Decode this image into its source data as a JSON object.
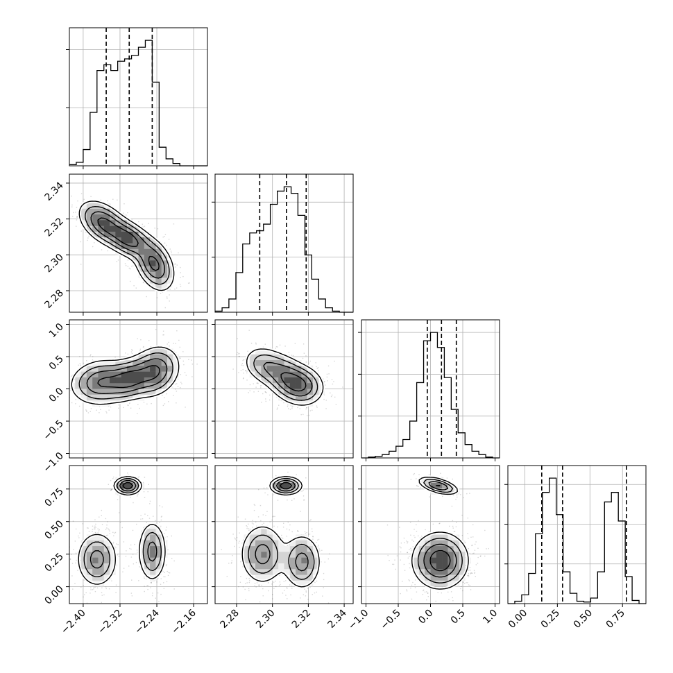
{
  "chart_data": {
    "type": "corner",
    "grid": true,
    "params": [
      {
        "range": [
          -2.43,
          -2.13
        ],
        "ticks": [
          -2.4,
          -2.32,
          -2.24,
          -2.16
        ],
        "tick_labels": [
          "−2.40",
          "−2.32",
          "−2.24",
          "−2.16"
        ],
        "quantiles": [
          -2.35,
          -2.3,
          -2.25
        ],
        "hist_edges": [
          -2.43,
          -2.415,
          -2.4,
          -2.385,
          -2.37,
          -2.355,
          -2.34,
          -2.325,
          -2.31,
          -2.295,
          -2.28,
          -2.265,
          -2.25,
          -2.235,
          -2.22,
          -2.205,
          -2.19,
          -2.175,
          -2.16,
          -2.145,
          -2.13
        ],
        "hist_counts": [
          1,
          3,
          14,
          46,
          82,
          87,
          82,
          90,
          92,
          95,
          102,
          108,
          72,
          16,
          6,
          2,
          0,
          0,
          0,
          0
        ]
      },
      {
        "range": [
          2.268,
          2.345
        ],
        "ticks": [
          2.28,
          2.3,
          2.32,
          2.34
        ],
        "tick_labels": [
          "2.28",
          "2.30",
          "2.32",
          "2.34"
        ],
        "quantiles": [
          2.2929,
          2.3078,
          2.3188
        ],
        "hist_edges": [
          2.268,
          2.2719,
          2.2757,
          2.2796,
          2.2834,
          2.2873,
          2.2911,
          2.295,
          2.2988,
          2.3027,
          2.3065,
          2.3104,
          2.3142,
          2.3181,
          2.3219,
          2.3258,
          2.3296,
          2.3335,
          2.3373,
          2.3412,
          2.345
        ],
        "hist_counts": [
          1,
          4,
          12,
          36,
          62,
          72,
          74,
          80,
          98,
          110,
          114,
          108,
          88,
          52,
          30,
          12,
          4,
          1,
          0,
          0
        ]
      },
      {
        "range": [
          -1.07,
          1.07
        ],
        "ticks": [
          -1.0,
          -0.5,
          0.0,
          0.5,
          1.0
        ],
        "tick_labels": [
          "−1.0",
          "−0.5",
          "0.0",
          "0.5",
          "1.0"
        ],
        "quantiles": [
          -0.05,
          0.17,
          0.4
        ],
        "hist_edges": [
          -1.07,
          -0.963,
          -0.856,
          -0.749,
          -0.642,
          -0.535,
          -0.428,
          -0.321,
          -0.214,
          -0.107,
          0.0,
          0.107,
          0.214,
          0.321,
          0.428,
          0.535,
          0.642,
          0.749,
          0.856,
          0.963,
          1.07
        ],
        "hist_counts": [
          0,
          1,
          2,
          4,
          8,
          14,
          22,
          44,
          90,
          140,
          150,
          132,
          96,
          58,
          30,
          16,
          8,
          4,
          1,
          0
        ]
      },
      {
        "range": [
          -0.13,
          0.93
        ],
        "ticks": [
          0.0,
          0.25,
          0.5,
          0.75
        ],
        "tick_labels": [
          "0.00",
          "0.25",
          "0.50",
          "0.75"
        ],
        "quantiles": [
          0.13,
          0.29,
          0.78
        ],
        "hist_edges": [
          -0.13,
          -0.077,
          -0.024,
          0.029,
          0.082,
          0.135,
          0.188,
          0.241,
          0.294,
          0.347,
          0.4,
          0.453,
          0.506,
          0.559,
          0.612,
          0.665,
          0.718,
          0.771,
          0.824,
          0.877,
          0.93
        ],
        "hist_counts": [
          0,
          3,
          11,
          38,
          88,
          140,
          158,
          112,
          40,
          13,
          3,
          2,
          7,
          40,
          128,
          140,
          104,
          34,
          4,
          0
        ]
      }
    ],
    "pairs": [
      {
        "row": 1,
        "col": 0,
        "peaks": [
          {
            "x": -2.355,
            "y": 2.3175,
            "wx": 0.028,
            "wy": 0.0065,
            "rho": -0.45,
            "amp": 1.0
          },
          {
            "x": -2.3,
            "y": 2.3085,
            "wx": 0.025,
            "wy": 0.0055,
            "rho": -0.4,
            "amp": 1.0
          },
          {
            "x": -2.245,
            "y": 2.2945,
            "wx": 0.022,
            "wy": 0.0075,
            "rho": -0.35,
            "amp": 1.0
          }
        ]
      },
      {
        "row": 2,
        "col": 0,
        "peaks": [
          {
            "x": -2.36,
            "y": 0.1,
            "wx": 0.035,
            "wy": 0.18,
            "rho": 0.1,
            "amp": 1.0
          },
          {
            "x": -2.3,
            "y": 0.15,
            "wx": 0.025,
            "wy": 0.16,
            "rho": 0.2,
            "amp": 0.9
          },
          {
            "x": -2.245,
            "y": 0.27,
            "wx": 0.028,
            "wy": 0.2,
            "rho": 0.2,
            "amp": 1.05
          }
        ]
      },
      {
        "row": 2,
        "col": 1,
        "peaks": [
          {
            "x": 2.2955,
            "y": 0.37,
            "wx": 0.0065,
            "wy": 0.16,
            "rho": -0.2,
            "amp": 0.7
          },
          {
            "x": 2.3075,
            "y": 0.18,
            "wx": 0.0065,
            "wy": 0.18,
            "rho": -0.25,
            "amp": 1.0
          },
          {
            "x": 2.3165,
            "y": 0.05,
            "wx": 0.0065,
            "wy": 0.16,
            "rho": -0.1,
            "amp": 1.1
          }
        ]
      },
      {
        "row": 3,
        "col": 0,
        "peaks": [
          {
            "x": -2.37,
            "y": 0.21,
            "wx": 0.023,
            "wy": 0.11,
            "rho": 0.0,
            "amp": 1.0
          },
          {
            "x": -2.25,
            "y": 0.27,
            "wx": 0.016,
            "wy": 0.12,
            "rho": 0.0,
            "amp": 1.0
          },
          {
            "x": -2.303,
            "y": 0.775,
            "wx": 0.015,
            "wy": 0.035,
            "rho": 0.0,
            "amp": 1.6
          }
        ]
      },
      {
        "row": 3,
        "col": 1,
        "peaks": [
          {
            "x": 2.2945,
            "y": 0.25,
            "wx": 0.0065,
            "wy": 0.12,
            "rho": 0.0,
            "amp": 1.0
          },
          {
            "x": 2.3165,
            "y": 0.19,
            "wx": 0.0055,
            "wy": 0.11,
            "rho": 0.0,
            "amp": 1.0
          },
          {
            "x": 2.3075,
            "y": 0.775,
            "wx": 0.0045,
            "wy": 0.035,
            "rho": 0.0,
            "amp": 1.6
          }
        ]
      },
      {
        "row": 3,
        "col": 2,
        "peaks": [
          {
            "x": 0.15,
            "y": 0.2,
            "wx": 0.22,
            "wy": 0.11,
            "rho": 0.0,
            "amp": 2.0
          },
          {
            "x": 0.12,
            "y": 0.775,
            "wx": 0.16,
            "wy": 0.035,
            "rho": -0.55,
            "amp": 1.6
          }
        ]
      }
    ]
  }
}
